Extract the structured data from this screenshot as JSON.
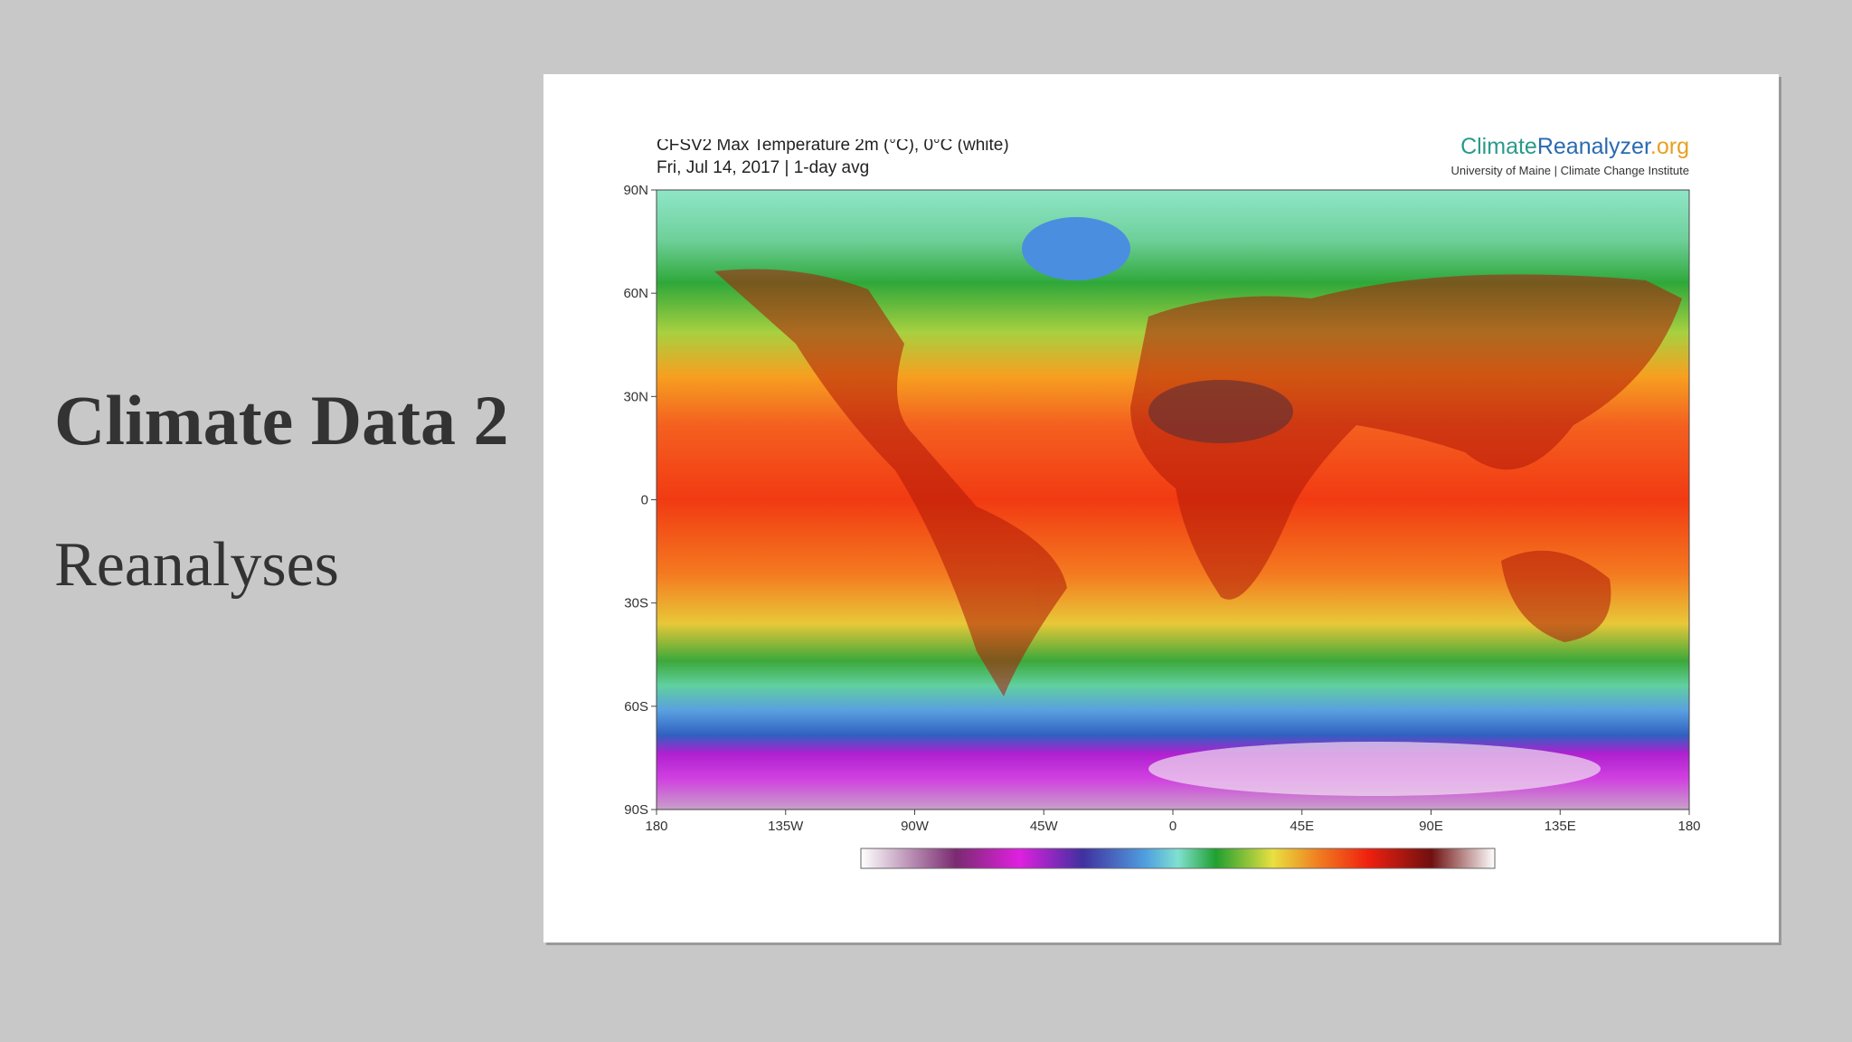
{
  "slide": {
    "title": "Climate Data 2",
    "subtitle": "Reanalyses"
  },
  "figure": {
    "title": "CFSV2 Max Temperature 2m (°C), 0°C (white)",
    "date": "Fri, Jul 14, 2017 | 1-day avg",
    "logo": [
      "Climate",
      "Reanalyzer",
      ".org"
    ],
    "attribution": "University of Maine | Climate Change Institute",
    "lat_labels": [
      "90N",
      "60N",
      "30N",
      "0",
      "30S",
      "60S",
      "90S"
    ],
    "lon_labels": [
      "180",
      "135W",
      "90W",
      "45W",
      "0",
      "45E",
      "90E",
      "135E",
      "180"
    ]
  }
}
